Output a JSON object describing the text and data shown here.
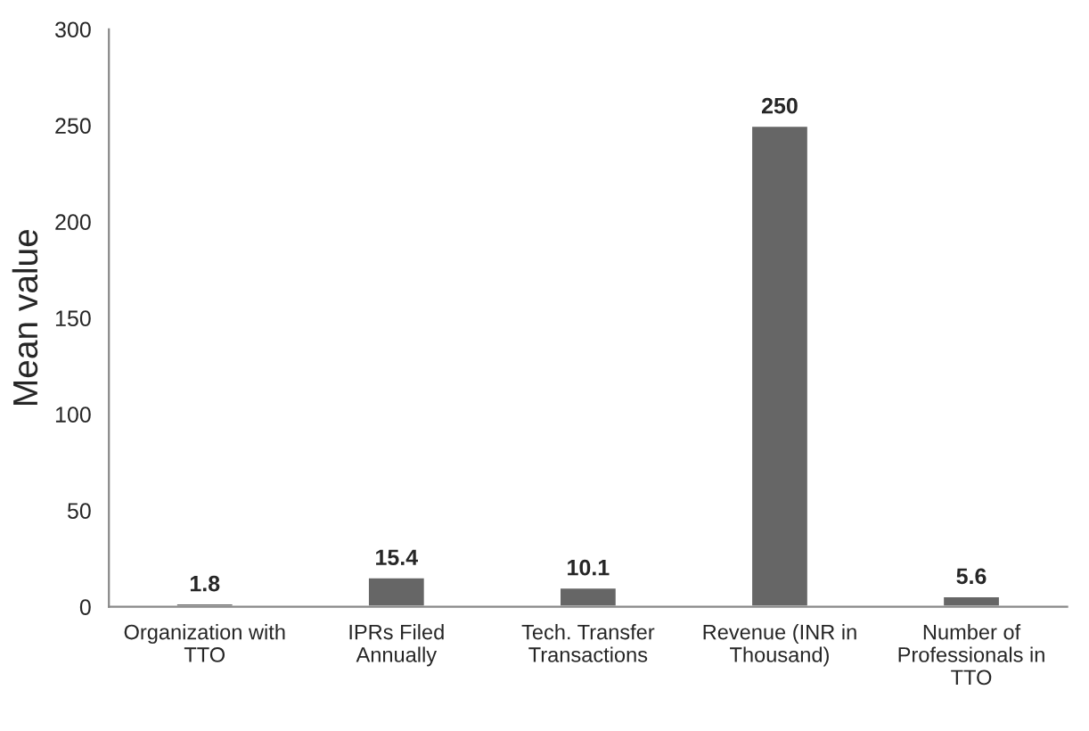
{
  "chart_data": {
    "type": "bar",
    "ylabel": "Mean value",
    "categories": [
      "Organization with\nTTO",
      "IPRs Filed\nAnnually",
      "Tech. Transfer\nTransactions",
      "Revenue (INR in\nThousand)",
      "Number of\nProfessionals in\nTTO"
    ],
    "values": [
      1.8,
      15.4,
      10.1,
      250,
      5.6
    ],
    "color": "#666666",
    "data_labels": true,
    "ylim": [
      0,
      300
    ],
    "yticks": [
      0,
      50,
      100,
      150,
      200,
      250,
      300
    ]
  }
}
